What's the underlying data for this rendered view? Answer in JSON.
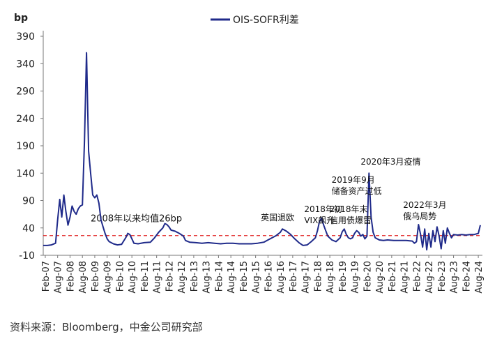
{
  "chart_data": {
    "type": "line",
    "title": "",
    "ylabel": "bp",
    "xlabel": "",
    "ylim": [
      -10,
      390
    ],
    "y_ticks": [
      -10,
      40,
      90,
      140,
      190,
      240,
      290,
      340,
      390
    ],
    "x_range": [
      "2007-01",
      "2024-10"
    ],
    "x_tick_labels": [
      "Feb-07",
      "Aug-07",
      "Feb-08",
      "Aug-08",
      "Feb-09",
      "Aug-09",
      "Feb-10",
      "Aug-10",
      "Feb-11",
      "Aug-11",
      "Feb-12",
      "Aug-12",
      "Feb-13",
      "Aug-13",
      "Feb-14",
      "Aug-14",
      "Feb-15",
      "Aug-15",
      "Feb-16",
      "Aug-16",
      "Feb-17",
      "Aug-17",
      "Feb-18",
      "Aug-18",
      "Feb-19",
      "Aug-19",
      "Feb-20",
      "Aug-20",
      "Feb-21",
      "Aug-21",
      "Feb-22",
      "Aug-22",
      "Feb-23",
      "Aug-23",
      "Feb-24",
      "Aug-24"
    ],
    "legend_position": "top-center",
    "grid": false,
    "series": [
      {
        "name": "OIS-SOFR利差",
        "color": "#1f2a8a",
        "points": [
          [
            "2007-01",
            8
          ],
          [
            "2007-03",
            8
          ],
          [
            "2007-05",
            9
          ],
          [
            "2007-07",
            12
          ],
          [
            "2007-08",
            55
          ],
          [
            "2007-09",
            92
          ],
          [
            "2007-10",
            60
          ],
          [
            "2007-11",
            100
          ],
          [
            "2007-12",
            70
          ],
          [
            "2008-01",
            45
          ],
          [
            "2008-02",
            60
          ],
          [
            "2008-03",
            80
          ],
          [
            "2008-04",
            70
          ],
          [
            "2008-05",
            65
          ],
          [
            "2008-06",
            75
          ],
          [
            "2008-07",
            80
          ],
          [
            "2008-08",
            82
          ],
          [
            "2008-09",
            200
          ],
          [
            "2008-10",
            360
          ],
          [
            "2008-11",
            180
          ],
          [
            "2008-12",
            140
          ],
          [
            "2009-01",
            100
          ],
          [
            "2009-02",
            95
          ],
          [
            "2009-03",
            100
          ],
          [
            "2009-04",
            85
          ],
          [
            "2009-05",
            55
          ],
          [
            "2009-06",
            42
          ],
          [
            "2009-07",
            30
          ],
          [
            "2009-08",
            20
          ],
          [
            "2009-09",
            15
          ],
          [
            "2009-11",
            11
          ],
          [
            "2010-01",
            9
          ],
          [
            "2010-03",
            10
          ],
          [
            "2010-05",
            22
          ],
          [
            "2010-06",
            30
          ],
          [
            "2010-07",
            28
          ],
          [
            "2010-08",
            20
          ],
          [
            "2010-09",
            12
          ],
          [
            "2010-11",
            11
          ],
          [
            "2011-02",
            13
          ],
          [
            "2011-05",
            14
          ],
          [
            "2011-07",
            22
          ],
          [
            "2011-09",
            32
          ],
          [
            "2011-11",
            40
          ],
          [
            "2011-12",
            48
          ],
          [
            "2012-01",
            46
          ],
          [
            "2012-02",
            42
          ],
          [
            "2012-03",
            36
          ],
          [
            "2012-05",
            34
          ],
          [
            "2012-07",
            30
          ],
          [
            "2012-09",
            25
          ],
          [
            "2012-10",
            17
          ],
          [
            "2012-12",
            14
          ],
          [
            "2013-03",
            13
          ],
          [
            "2013-06",
            12
          ],
          [
            "2013-09",
            13
          ],
          [
            "2013-12",
            12
          ],
          [
            "2014-03",
            11
          ],
          [
            "2014-06",
            12
          ],
          [
            "2014-09",
            12
          ],
          [
            "2014-12",
            11
          ],
          [
            "2015-03",
            11
          ],
          [
            "2015-06",
            11
          ],
          [
            "2015-09",
            12
          ],
          [
            "2015-12",
            14
          ],
          [
            "2016-02",
            18
          ],
          [
            "2016-04",
            22
          ],
          [
            "2016-06",
            26
          ],
          [
            "2016-08",
            32
          ],
          [
            "2016-09",
            38
          ],
          [
            "2016-10",
            36
          ],
          [
            "2016-11",
            34
          ],
          [
            "2017-01",
            28
          ],
          [
            "2017-03",
            20
          ],
          [
            "2017-05",
            13
          ],
          [
            "2017-07",
            8
          ],
          [
            "2017-09",
            9
          ],
          [
            "2017-11",
            15
          ],
          [
            "2018-01",
            22
          ],
          [
            "2018-02",
            35
          ],
          [
            "2018-03",
            52
          ],
          [
            "2018-04",
            58
          ],
          [
            "2018-05",
            45
          ],
          [
            "2018-06",
            35
          ],
          [
            "2018-07",
            25
          ],
          [
            "2018-09",
            18
          ],
          [
            "2018-11",
            15
          ],
          [
            "2019-01",
            22
          ],
          [
            "2019-02",
            33
          ],
          [
            "2019-03",
            38
          ],
          [
            "2019-04",
            28
          ],
          [
            "2019-05",
            22
          ],
          [
            "2019-06",
            20
          ],
          [
            "2019-07",
            22
          ],
          [
            "2019-08",
            30
          ],
          [
            "2019-09",
            35
          ],
          [
            "2019-10",
            32
          ],
          [
            "2019-11",
            25
          ],
          [
            "2019-12",
            28
          ],
          [
            "2020-01",
            20
          ],
          [
            "2020-02",
            25
          ],
          [
            "2020-03",
            140
          ],
          [
            "2020-04",
            60
          ],
          [
            "2020-05",
            32
          ],
          [
            "2020-06",
            22
          ],
          [
            "2020-08",
            18
          ],
          [
            "2020-10",
            17
          ],
          [
            "2020-12",
            18
          ],
          [
            "2021-03",
            17
          ],
          [
            "2021-06",
            17
          ],
          [
            "2021-09",
            17
          ],
          [
            "2021-12",
            16
          ],
          [
            "2022-01",
            12
          ],
          [
            "2022-02",
            15
          ],
          [
            "2022-03",
            46
          ],
          [
            "2022-04",
            28
          ],
          [
            "2022-05",
            5
          ],
          [
            "2022-06",
            38
          ],
          [
            "2022-07",
            0
          ],
          [
            "2022-08",
            30
          ],
          [
            "2022-09",
            5
          ],
          [
            "2022-10",
            35
          ],
          [
            "2022-11",
            15
          ],
          [
            "2022-12",
            42
          ],
          [
            "2023-01",
            25
          ],
          [
            "2023-02",
            2
          ],
          [
            "2023-03",
            35
          ],
          [
            "2023-04",
            12
          ],
          [
            "2023-05",
            40
          ],
          [
            "2023-06",
            30
          ],
          [
            "2023-07",
            22
          ],
          [
            "2023-08",
            28
          ],
          [
            "2023-10",
            27
          ],
          [
            "2023-12",
            28
          ],
          [
            "2024-02",
            27
          ],
          [
            "2024-04",
            28
          ],
          [
            "2024-06",
            28
          ],
          [
            "2024-08",
            30
          ],
          [
            "2024-09",
            45
          ]
        ]
      }
    ],
    "reference_line": {
      "label": "2008年以来均值26bp",
      "value": 26,
      "color": "#e02020"
    },
    "annotations": [
      {
        "text": "英国退欧",
        "x": "2016-08"
      },
      {
        "text": "2018年初VIX飙升",
        "x": "2018-03"
      },
      {
        "text": "2018年末信用债爆雷",
        "x": "2018-12"
      },
      {
        "text": "2019年9月储备资产过低",
        "x": "2019-09"
      },
      {
        "text": "2020年3月疫情",
        "x": "2020-03"
      },
      {
        "text": "2022年3月俄乌局势",
        "x": "2022-03"
      }
    ]
  },
  "source_note": "资料来源：Bloomberg，中金公司研究部"
}
